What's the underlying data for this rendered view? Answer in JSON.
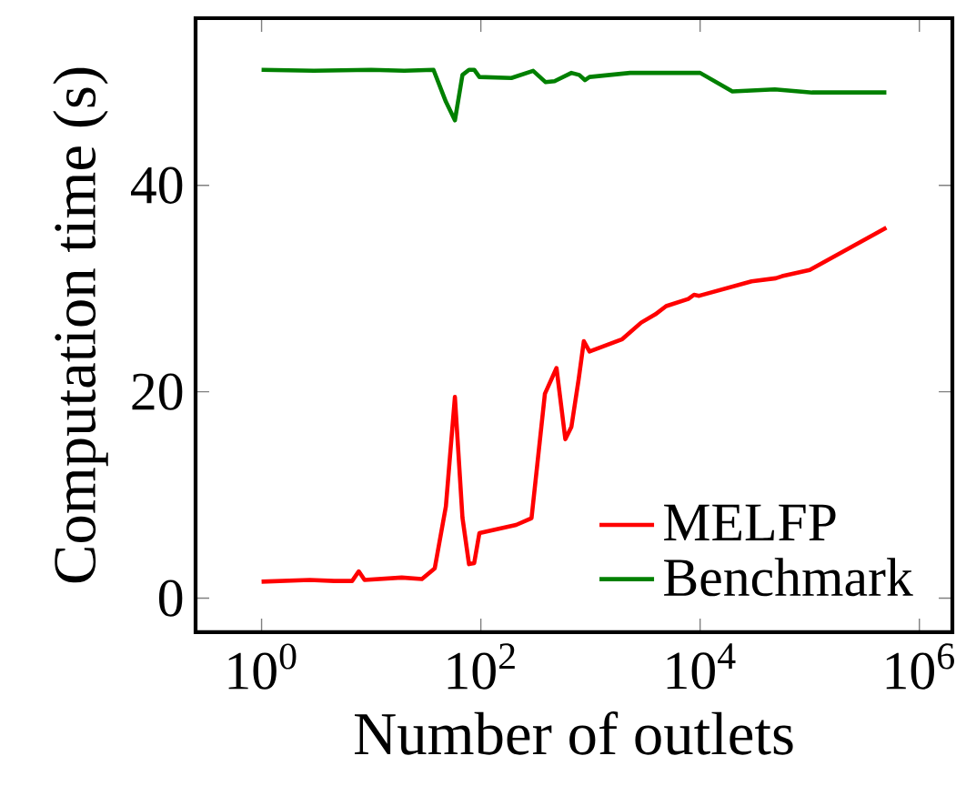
{
  "chart_data": {
    "type": "line",
    "xlabel": "Number of outlets",
    "ylabel": "Computation time (s)",
    "log": "x",
    "legend": "bottom right",
    "grid": false,
    "xlim": [
      0.25,
      2000000
    ],
    "ylim": [
      -3.3,
      56.2
    ],
    "xticks": [
      {
        "value": 1,
        "label": "10$^{0}$"
      },
      {
        "value": 100,
        "label": "10$^{2}$"
      },
      {
        "value": 10000,
        "label": "10$^{4}$"
      },
      {
        "value": 1000000,
        "label": "10$^{6}$"
      }
    ],
    "yticks": [
      0,
      20,
      40
    ],
    "series": [
      {
        "name": "MELFP",
        "color": "#ff0000",
        "x": [
          1,
          2.75,
          4.6,
          6.7,
          7.7,
          8.7,
          19,
          29,
          38,
          48,
          58,
          68,
          78,
          87,
          97,
          210,
          290,
          384,
          490,
          590,
          670,
          780,
          870,
          980,
          1950,
          2900,
          3900,
          4900,
          7800,
          8800,
          9800,
          29500,
          49000,
          56000,
          100000,
          500000
        ],
        "values": [
          1.6,
          1.76,
          1.67,
          1.67,
          2.6,
          1.76,
          2.0,
          1.85,
          2.9,
          8.9,
          19.5,
          7.8,
          3.3,
          3.4,
          6.3,
          7.1,
          7.75,
          19.8,
          22.3,
          15.4,
          16.6,
          21.2,
          24.9,
          23.9,
          25.1,
          26.7,
          27.5,
          28.3,
          29.0,
          29.4,
          29.3,
          30.7,
          31.0,
          31.2,
          31.8,
          35.9
        ]
      },
      {
        "name": "Benchmark",
        "color": "#008000",
        "x": [
          1,
          3,
          10,
          20,
          37,
          48,
          58,
          68,
          78,
          87,
          97,
          190,
          300,
          390,
          470,
          670,
          790,
          890,
          980,
          1500,
          2300,
          10000,
          19700,
          48000,
          105000,
          500000
        ],
        "values": [
          51.2,
          51.1,
          51.2,
          51.1,
          51.2,
          48.1,
          46.3,
          50.7,
          51.2,
          51.2,
          50.5,
          50.4,
          51.1,
          50.0,
          50.1,
          50.9,
          50.7,
          50.2,
          50.5,
          50.7,
          50.9,
          50.9,
          49.1,
          49.3,
          49.0,
          49.0
        ]
      }
    ]
  }
}
